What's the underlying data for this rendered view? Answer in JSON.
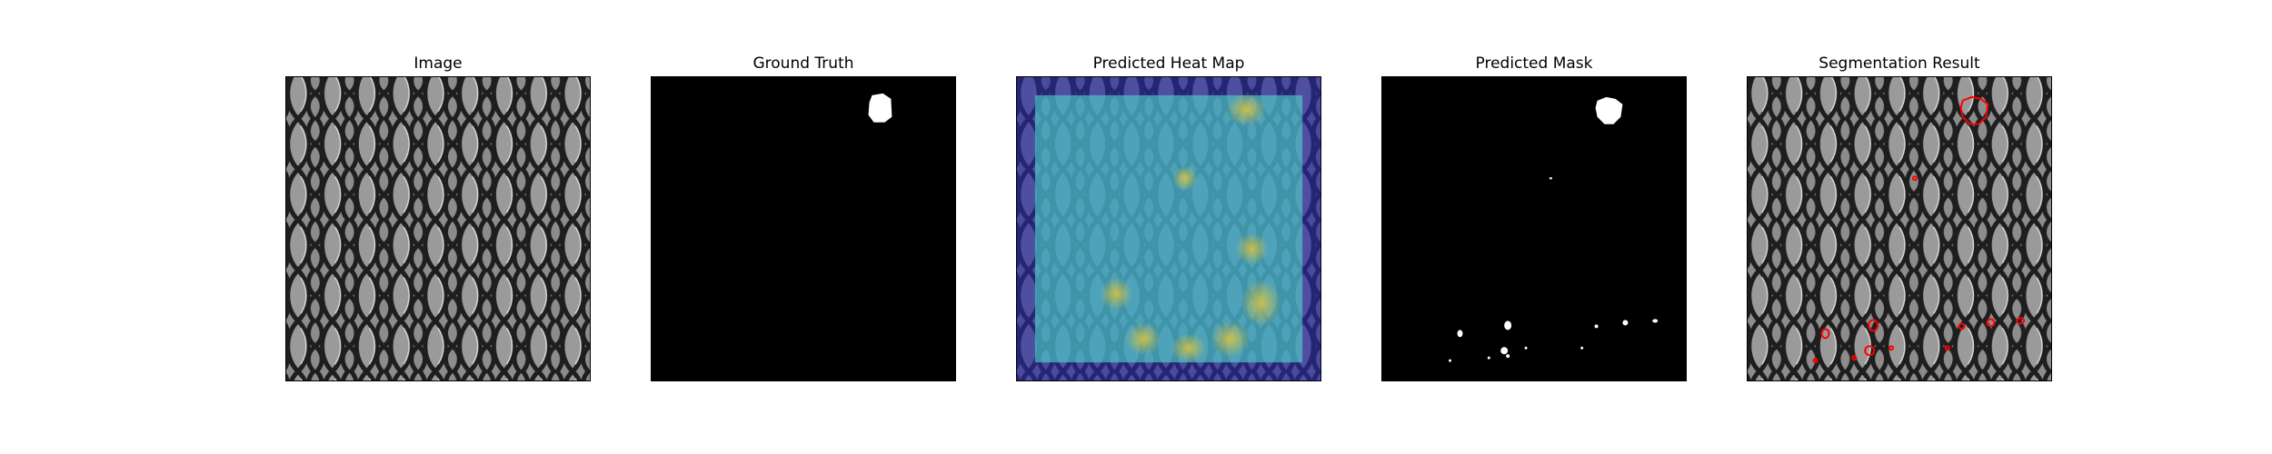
{
  "figure": {
    "panels": [
      {
        "title": "Image"
      },
      {
        "title": "Ground Truth"
      },
      {
        "title": "Predicted Heat Map"
      },
      {
        "title": "Predicted Mask"
      },
      {
        "title": "Segmentation Result"
      }
    ]
  },
  "colors": {
    "background": "#ffffff",
    "mesh_fill": "#8a8a8a",
    "mesh_line": "#1e1e1e",
    "mask_fg": "#ffffff",
    "mask_bg": "#000000",
    "heat_outer": "#3a3aa8",
    "heat_inner": "#4fc3c3",
    "heat_hot": "#d7c24a",
    "contour": "#ff0000"
  }
}
